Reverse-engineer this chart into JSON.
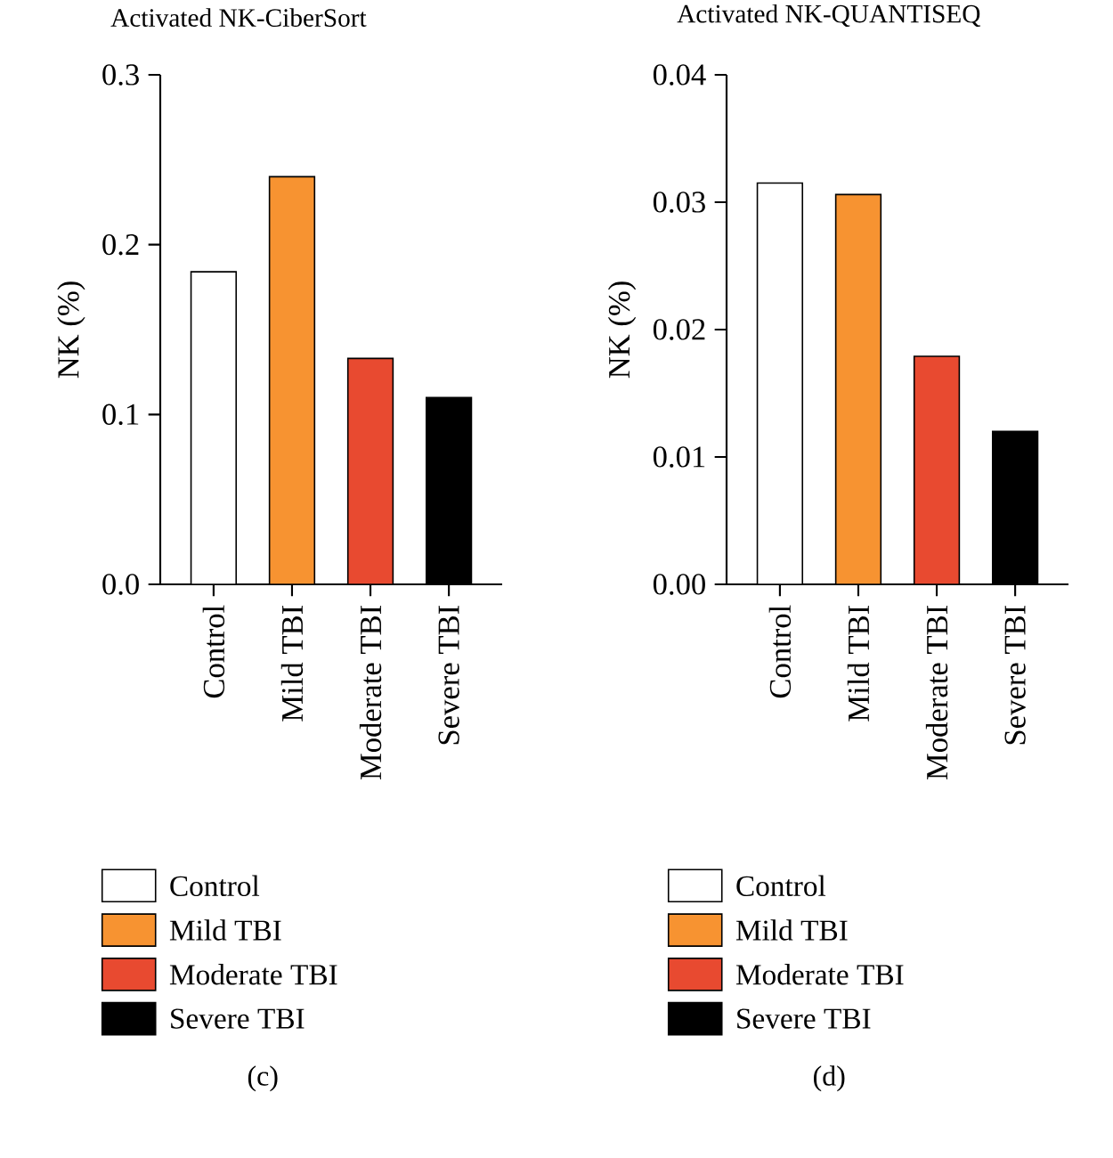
{
  "chart_data": [
    {
      "type": "bar",
      "title": "Activated NK-CiberSort",
      "ylabel": "NK (%)",
      "categories": [
        "Control",
        "Mild TBI",
        "Moderate TBI",
        "Severe TBI"
      ],
      "ylim": [
        0,
        0.3
      ],
      "yticks": [
        {
          "value": 0,
          "label": "0.0"
        },
        0.1,
        0.2,
        0.3
      ],
      "legend": "bottom",
      "annotations": [
        "(c)"
      ],
      "series": [
        {
          "name": "Control",
          "color": "#ffffff",
          "values": [
            0.184,
            null,
            null,
            null
          ]
        },
        {
          "name": "Mild TBI",
          "color": "#f79331",
          "values": [
            null,
            0.24,
            null,
            null
          ]
        },
        {
          "name": "Moderate TBI",
          "color": "#e84a30",
          "values": [
            null,
            null,
            0.133,
            null
          ]
        },
        {
          "name": "Severe TBI",
          "color": "#000000",
          "values": [
            null,
            null,
            null,
            0.11
          ]
        }
      ]
    },
    {
      "type": "bar",
      "title": "Activated NK-QUANTISEQ",
      "ylabel": "NK (%)",
      "categories": [
        "Control",
        "Mild TBI",
        "Moderate TBI",
        "Severe TBI"
      ],
      "ylim": [
        0,
        0.04
      ],
      "yticks": [
        {
          "value": 0,
          "label": "0.00"
        },
        0.01,
        0.02,
        0.03,
        0.04
      ],
      "legend": "bottom",
      "annotations": [
        "(d)"
      ],
      "series": [
        {
          "name": "Control",
          "color": "#ffffff",
          "values": [
            0.0315,
            null,
            null,
            null
          ]
        },
        {
          "name": "Mild TBI",
          "color": "#f79331",
          "values": [
            null,
            0.0306,
            null,
            null
          ]
        },
        {
          "name": "Moderate TBI",
          "color": "#e84a30",
          "values": [
            null,
            null,
            0.0179,
            null
          ]
        },
        {
          "name": "Severe TBI",
          "color": "#000000",
          "values": [
            null,
            null,
            null,
            0.012
          ]
        }
      ]
    }
  ]
}
